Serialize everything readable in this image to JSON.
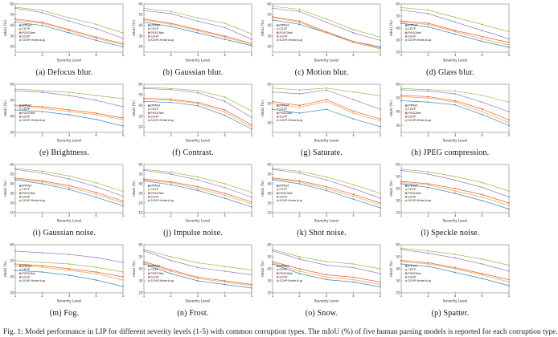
{
  "figure": {
    "caption": "Fig. 1: Model performance in LIP for different severity levels (1-5) with common corruption types. The mIoU (%) of five human parsing models is reported for each corruption type.",
    "xlabel": "Severity Level",
    "ylabel": "mIoU (%)",
    "x_ticks": [
      1,
      2,
      3,
      4,
      5
    ]
  },
  "legend": {
    "entries": [
      {
        "name": "JPPNet",
        "color": "#3a87c8"
      },
      {
        "name": "CE2P",
        "color": "#ffa144"
      },
      {
        "name": "PGECNet",
        "color": "#e0603a"
      },
      {
        "name": "SCHP",
        "color": "#a379cb"
      },
      {
        "name": "SCHP-HeterAug",
        "color": "#97be4a"
      }
    ]
  },
  "chart_data": [
    {
      "type": "line",
      "caption": "(a) Defocus blur.",
      "x": [
        1,
        2,
        3,
        4,
        5
      ],
      "ylim": [
        15,
        60
      ],
      "series": [
        {
          "name": "JPPNet",
          "color": "#3a87c8",
          "values": [
            43,
            40,
            33,
            26,
            20
          ]
        },
        {
          "name": "CE2P",
          "color": "#ffa144",
          "values": [
            45,
            42,
            35,
            28,
            22
          ]
        },
        {
          "name": "PGECNet",
          "color": "#e0603a",
          "values": [
            46,
            43,
            36,
            29,
            23
          ]
        },
        {
          "name": "SCHP",
          "color": "#a379cb",
          "values": [
            56,
            52,
            44,
            37,
            28
          ]
        },
        {
          "name": "SCHP-HeterAug",
          "color": "#97be4a",
          "values": [
            57,
            54,
            47,
            41,
            33
          ]
        }
      ]
    },
    {
      "type": "line",
      "caption": "(b) Gaussian blur.",
      "x": [
        1,
        2,
        3,
        4,
        5
      ],
      "ylim": [
        15,
        60
      ],
      "series": [
        {
          "name": "JPPNet",
          "color": "#3a87c8",
          "values": [
            43,
            39,
            33,
            27,
            21
          ]
        },
        {
          "name": "CE2P",
          "color": "#ffa144",
          "values": [
            45,
            41,
            35,
            29,
            22
          ]
        },
        {
          "name": "PGECNet",
          "color": "#e0603a",
          "values": [
            46,
            42,
            36,
            30,
            23
          ]
        },
        {
          "name": "SCHP",
          "color": "#a379cb",
          "values": [
            54,
            51,
            44,
            38,
            27
          ]
        },
        {
          "name": "SCHP-HeterAug",
          "color": "#97be4a",
          "values": [
            56,
            53,
            47,
            42,
            32
          ]
        }
      ]
    },
    {
      "type": "line",
      "caption": "(c) Motion blur.",
      "x": [
        1,
        2,
        3,
        4,
        5
      ],
      "ylim": [
        15,
        60
      ],
      "series": [
        {
          "name": "JPPNet",
          "color": "#3a87c8",
          "values": [
            45,
            41,
            33,
            25,
            20
          ]
        },
        {
          "name": "CE2P",
          "color": "#ffa144",
          "values": [
            47,
            43,
            33,
            24,
            18
          ]
        },
        {
          "name": "PGECNet",
          "color": "#e0603a",
          "values": [
            48,
            44,
            34,
            25,
            19
          ]
        },
        {
          "name": "SCHP",
          "color": "#a379cb",
          "values": [
            56,
            53,
            43,
            33,
            26
          ]
        },
        {
          "name": "SCHP-HeterAug",
          "color": "#97be4a",
          "values": [
            58,
            55,
            46,
            36,
            29
          ]
        }
      ]
    },
    {
      "type": "line",
      "caption": "(d) Glass blur.",
      "x": [
        1,
        2,
        3,
        4,
        5
      ],
      "ylim": [
        20,
        60
      ],
      "series": [
        {
          "name": "JPPNet",
          "color": "#3a87c8",
          "values": [
            44,
            41,
            35,
            29,
            24
          ]
        },
        {
          "name": "CE2P",
          "color": "#ffa144",
          "values": [
            45,
            43,
            37,
            31,
            26
          ]
        },
        {
          "name": "PGECNet",
          "color": "#e0603a",
          "values": [
            46,
            44,
            38,
            33,
            28
          ]
        },
        {
          "name": "SCHP",
          "color": "#a379cb",
          "values": [
            55,
            52,
            45,
            38,
            31
          ]
        },
        {
          "name": "SCHP-HeterAug",
          "color": "#97be4a",
          "values": [
            57,
            55,
            49,
            43,
            37
          ]
        }
      ]
    },
    {
      "type": "line",
      "caption": "(e) Brightness.",
      "x": [
        1,
        2,
        3,
        4,
        5
      ],
      "ylim": [
        30,
        60
      ],
      "series": [
        {
          "name": "JPPNet",
          "color": "#3a87c8",
          "values": [
            44,
            43,
            41,
            38,
            34
          ]
        },
        {
          "name": "CE2P",
          "color": "#ffa144",
          "values": [
            46,
            45,
            43,
            41,
            38
          ]
        },
        {
          "name": "PGECNet",
          "color": "#e0603a",
          "values": [
            47,
            46,
            44,
            42,
            39
          ]
        },
        {
          "name": "SCHP",
          "color": "#a379cb",
          "values": [
            56,
            55,
            53,
            50,
            46
          ]
        },
        {
          "name": "SCHP-HeterAug",
          "color": "#97be4a",
          "values": [
            57,
            56,
            55,
            53,
            51
          ]
        }
      ]
    },
    {
      "type": "line",
      "caption": "(f) Contrast.",
      "x": [
        1,
        2,
        3,
        4,
        5
      ],
      "ylim": [
        15,
        60
      ],
      "series": [
        {
          "name": "JPPNet",
          "color": "#3a87c8",
          "values": [
            44,
            43,
            40,
            31,
            18
          ]
        },
        {
          "name": "CE2P",
          "color": "#ffa144",
          "values": [
            46,
            45,
            42,
            34,
            20
          ]
        },
        {
          "name": "PGECNet",
          "color": "#e0603a",
          "values": [
            47,
            46,
            43,
            36,
            22
          ]
        },
        {
          "name": "SCHP",
          "color": "#a379cb",
          "values": [
            56,
            55,
            52,
            44,
            29
          ]
        },
        {
          "name": "SCHP-HeterAug",
          "color": "#97be4a",
          "values": [
            57,
            56,
            54,
            48,
            35
          ]
        }
      ]
    },
    {
      "type": "line",
      "caption": "(g) Saturate.",
      "x": [
        1,
        2,
        3,
        4,
        5
      ],
      "ylim": [
        35,
        60
      ],
      "series": [
        {
          "name": "JPPNet",
          "color": "#3a87c8",
          "values": [
            47,
            45,
            47,
            42,
            38
          ]
        },
        {
          "name": "CE2P",
          "color": "#ffa144",
          "values": [
            50,
            48,
            51,
            45,
            41
          ]
        },
        {
          "name": "PGECNet",
          "color": "#e0603a",
          "values": [
            51,
            49,
            52,
            46,
            42
          ]
        },
        {
          "name": "SCHP",
          "color": "#a379cb",
          "values": [
            56,
            55,
            57,
            52,
            47
          ]
        },
        {
          "name": "SCHP-HeterAug",
          "color": "#97be4a",
          "values": [
            58,
            57,
            58,
            56,
            54
          ]
        }
      ]
    },
    {
      "type": "line",
      "caption": "(h) JPEG compression.",
      "x": [
        1,
        2,
        3,
        4,
        5
      ],
      "ylim": [
        25,
        60
      ],
      "series": [
        {
          "name": "JPPNet",
          "color": "#3a87c8",
          "values": [
            48,
            47,
            45,
            38,
            30
          ]
        },
        {
          "name": "CE2P",
          "color": "#ffa144",
          "values": [
            51,
            50,
            47,
            40,
            32
          ]
        },
        {
          "name": "PGECNet",
          "color": "#e0603a",
          "values": [
            52,
            51,
            48,
            42,
            34
          ]
        },
        {
          "name": "SCHP",
          "color": "#a379cb",
          "values": [
            56,
            55,
            53,
            47,
            40
          ]
        },
        {
          "name": "SCHP-HeterAug",
          "color": "#97be4a",
          "values": [
            57,
            56,
            55,
            52,
            47
          ]
        }
      ]
    },
    {
      "type": "line",
      "caption": "(i) Gaussian noise.",
      "x": [
        1,
        2,
        3,
        4,
        5
      ],
      "ylim": [
        10,
        60
      ],
      "series": [
        {
          "name": "JPPNet",
          "color": "#3a87c8",
          "values": [
            44,
            40,
            34,
            26,
            17
          ]
        },
        {
          "name": "CE2P",
          "color": "#ffa144",
          "values": [
            45,
            42,
            36,
            29,
            20
          ]
        },
        {
          "name": "PGECNet",
          "color": "#e0603a",
          "values": [
            46,
            43,
            38,
            31,
            22
          ]
        },
        {
          "name": "SCHP",
          "color": "#a379cb",
          "values": [
            55,
            51,
            45,
            37,
            27
          ]
        },
        {
          "name": "SCHP-HeterAug",
          "color": "#97be4a",
          "values": [
            56,
            53,
            48,
            41,
            32
          ]
        }
      ]
    },
    {
      "type": "line",
      "caption": "(j) Impulse noise.",
      "x": [
        1,
        2,
        3,
        4,
        5
      ],
      "ylim": [
        10,
        60
      ],
      "series": [
        {
          "name": "JPPNet",
          "color": "#3a87c8",
          "values": [
            43,
            39,
            33,
            25,
            16
          ]
        },
        {
          "name": "CE2P",
          "color": "#ffa144",
          "values": [
            44,
            41,
            35,
            28,
            19
          ]
        },
        {
          "name": "PGECNet",
          "color": "#e0603a",
          "values": [
            45,
            42,
            37,
            30,
            21
          ]
        },
        {
          "name": "SCHP",
          "color": "#a379cb",
          "values": [
            54,
            50,
            44,
            36,
            26
          ]
        },
        {
          "name": "SCHP-HeterAug",
          "color": "#97be4a",
          "values": [
            55,
            52,
            47,
            40,
            31
          ]
        }
      ]
    },
    {
      "type": "line",
      "caption": "(k) Shot noise.",
      "x": [
        1,
        2,
        3,
        4,
        5
      ],
      "ylim": [
        10,
        60
      ],
      "series": [
        {
          "name": "JPPNet",
          "color": "#3a87c8",
          "values": [
            44,
            40,
            33,
            24,
            15
          ]
        },
        {
          "name": "CE2P",
          "color": "#ffa144",
          "values": [
            45,
            42,
            35,
            27,
            18
          ]
        },
        {
          "name": "PGECNet",
          "color": "#e0603a",
          "values": [
            46,
            43,
            37,
            29,
            20
          ]
        },
        {
          "name": "SCHP",
          "color": "#a379cb",
          "values": [
            55,
            51,
            44,
            35,
            25
          ]
        },
        {
          "name": "SCHP-HeterAug",
          "color": "#97be4a",
          "values": [
            56,
            53,
            47,
            39,
            30
          ]
        }
      ]
    },
    {
      "type": "line",
      "caption": "(l) Speckle noise.",
      "x": [
        1,
        2,
        3,
        4,
        5
      ],
      "ylim": [
        20,
        60
      ],
      "series": [
        {
          "name": "JPPNet",
          "color": "#3a87c8",
          "values": [
            44,
            41,
            36,
            30,
            23
          ]
        },
        {
          "name": "CE2P",
          "color": "#ffa144",
          "values": [
            45,
            43,
            38,
            33,
            26
          ]
        },
        {
          "name": "PGECNet",
          "color": "#e0603a",
          "values": [
            46,
            44,
            40,
            35,
            28
          ]
        },
        {
          "name": "SCHP",
          "color": "#a379cb",
          "values": [
            55,
            52,
            47,
            41,
            33
          ]
        },
        {
          "name": "SCHP-HeterAug",
          "color": "#97be4a",
          "values": [
            56,
            54,
            50,
            45,
            38
          ]
        }
      ]
    },
    {
      "type": "line",
      "caption": "(m) Fog.",
      "x": [
        1,
        2,
        3,
        4,
        5
      ],
      "ylim": [
        30,
        60
      ],
      "series": [
        {
          "name": "JPPNet",
          "color": "#3a87c8",
          "values": [
            44,
            43,
            41,
            38,
            34
          ]
        },
        {
          "name": "CE2P",
          "color": "#ffa144",
          "values": [
            47,
            46,
            44,
            42,
            38
          ]
        },
        {
          "name": "PGECNet",
          "color": "#e0603a",
          "values": [
            48,
            47,
            45,
            43,
            40
          ]
        },
        {
          "name": "SCHP",
          "color": "#a379cb",
          "values": [
            56,
            55,
            54,
            52,
            49
          ]
        },
        {
          "name": "SCHP-HeterAug",
          "color": "#97be4a",
          "values": [
            50,
            49,
            48,
            46,
            43
          ]
        }
      ]
    },
    {
      "type": "line",
      "caption": "(n) Frost.",
      "x": [
        1,
        2,
        3,
        4,
        5
      ],
      "ylim": [
        20,
        60
      ],
      "series": [
        {
          "name": "JPPNet",
          "color": "#3a87c8",
          "values": [
            44,
            36,
            30,
            27,
            24
          ]
        },
        {
          "name": "CE2P",
          "color": "#ffa144",
          "values": [
            45,
            38,
            32,
            29,
            26
          ]
        },
        {
          "name": "PGECNet",
          "color": "#e0603a",
          "values": [
            46,
            39,
            33,
            30,
            27
          ]
        },
        {
          "name": "SCHP",
          "color": "#a379cb",
          "values": [
            55,
            47,
            41,
            38,
            35
          ]
        },
        {
          "name": "SCHP-HeterAug",
          "color": "#97be4a",
          "values": [
            56,
            50,
            45,
            42,
            39
          ]
        }
      ]
    },
    {
      "type": "line",
      "caption": "(o) Snow.",
      "x": [
        1,
        2,
        3,
        4,
        5
      ],
      "ylim": [
        20,
        60
      ],
      "series": [
        {
          "name": "JPPNet",
          "color": "#3a87c8",
          "values": [
            44,
            36,
            31,
            29,
            25
          ]
        },
        {
          "name": "CE2P",
          "color": "#ffa144",
          "values": [
            45,
            38,
            33,
            31,
            27
          ]
        },
        {
          "name": "PGECNet",
          "color": "#e0603a",
          "values": [
            46,
            40,
            35,
            33,
            29
          ]
        },
        {
          "name": "SCHP",
          "color": "#a379cb",
          "values": [
            55,
            48,
            43,
            41,
            36
          ]
        },
        {
          "name": "SCHP-HeterAug",
          "color": "#97be4a",
          "values": [
            56,
            50,
            46,
            44,
            40
          ]
        }
      ]
    },
    {
      "type": "line",
      "caption": "(p) Spatter.",
      "x": [
        1,
        2,
        3,
        4,
        5
      ],
      "ylim": [
        20,
        60
      ],
      "series": [
        {
          "name": "JPPNet",
          "color": "#3a87c8",
          "values": [
            44,
            42,
            37,
            32,
            26
          ]
        },
        {
          "name": "CE2P",
          "color": "#ffa144",
          "values": [
            46,
            44,
            40,
            35,
            29
          ]
        },
        {
          "name": "PGECNet",
          "color": "#e0603a",
          "values": [
            47,
            45,
            41,
            36,
            31
          ]
        },
        {
          "name": "SCHP",
          "color": "#a379cb",
          "values": [
            56,
            53,
            49,
            44,
            38
          ]
        },
        {
          "name": "SCHP-HeterAug",
          "color": "#97be4a",
          "values": [
            57,
            55,
            52,
            48,
            43
          ]
        }
      ]
    }
  ]
}
